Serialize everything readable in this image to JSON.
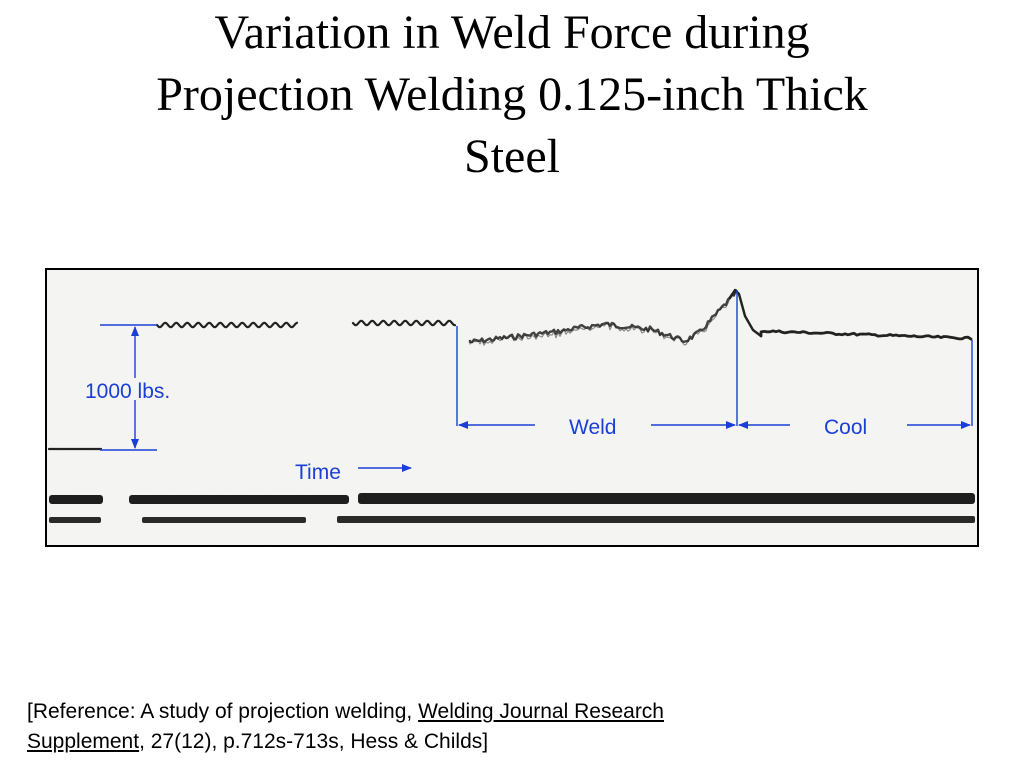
{
  "slide": {
    "title_line1": "Variation in Weld Force during",
    "title_line2": "Projection Welding 0.125-inch Thick",
    "title_line3": "Steel"
  },
  "figure": {
    "force_scale_label": "1000 lbs.",
    "weld_label": "Weld",
    "cool_label": "Cool",
    "time_label": "Time",
    "annotation_color": "#1a3fd6",
    "trace_color": "#222222"
  },
  "reference": {
    "prefix": "[Reference:  A study of projection welding, ",
    "journal_part1": "Welding Journal Research",
    "journal_part2": "Supplement",
    "suffix": ", 27(12), p.712s-713s, Hess & Childs]"
  }
}
